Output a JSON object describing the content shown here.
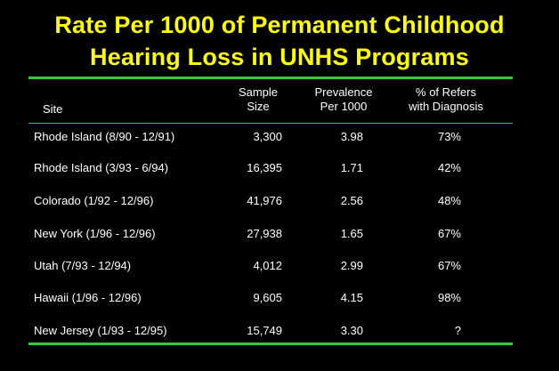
{
  "title": {
    "line1": "Rate Per 1000 of Permanent Childhood",
    "line2": "Hearing Loss in UNHS Programs"
  },
  "colors": {
    "background": "#000000",
    "title": "#ffff00",
    "rule": "#33cc33",
    "text": "#ffffff"
  },
  "table": {
    "headers": {
      "site": "Site",
      "sample_line1": "Sample",
      "sample_line2": "Size",
      "prevalence_line1": "Prevalence",
      "prevalence_line2": "Per 1000",
      "refers_line1": "% of Refers",
      "refers_line2": "with Diagnosis"
    },
    "rows": [
      {
        "site": "Rhode Island (8/90 - 12/91)",
        "sample": "3,300",
        "prevalence": "3.98",
        "refers": "73%"
      },
      {
        "site": "Rhode Island (3/93 - 6/94)",
        "sample": "16,395",
        "prevalence": "1.71",
        "refers": "42%"
      },
      {
        "site": "Colorado (1/92 - 12/96)",
        "sample": "41,976",
        "prevalence": "2.56",
        "refers": "48%"
      },
      {
        "site": "New York (1/96 - 12/96)",
        "sample": "27,938",
        "prevalence": "1.65",
        "refers": "67%"
      },
      {
        "site": "Utah (7/93 - 12/94)",
        "sample": "4,012",
        "prevalence": "2.99",
        "refers": "67%"
      },
      {
        "site": "Hawaii (1/96 - 12/96)",
        "sample": "9,605",
        "prevalence": "4.15",
        "refers": "98%"
      },
      {
        "site": "New Jersey (1/93 - 12/95)",
        "sample": "15,749",
        "prevalence": "3.30",
        "refers": "?"
      }
    ]
  }
}
